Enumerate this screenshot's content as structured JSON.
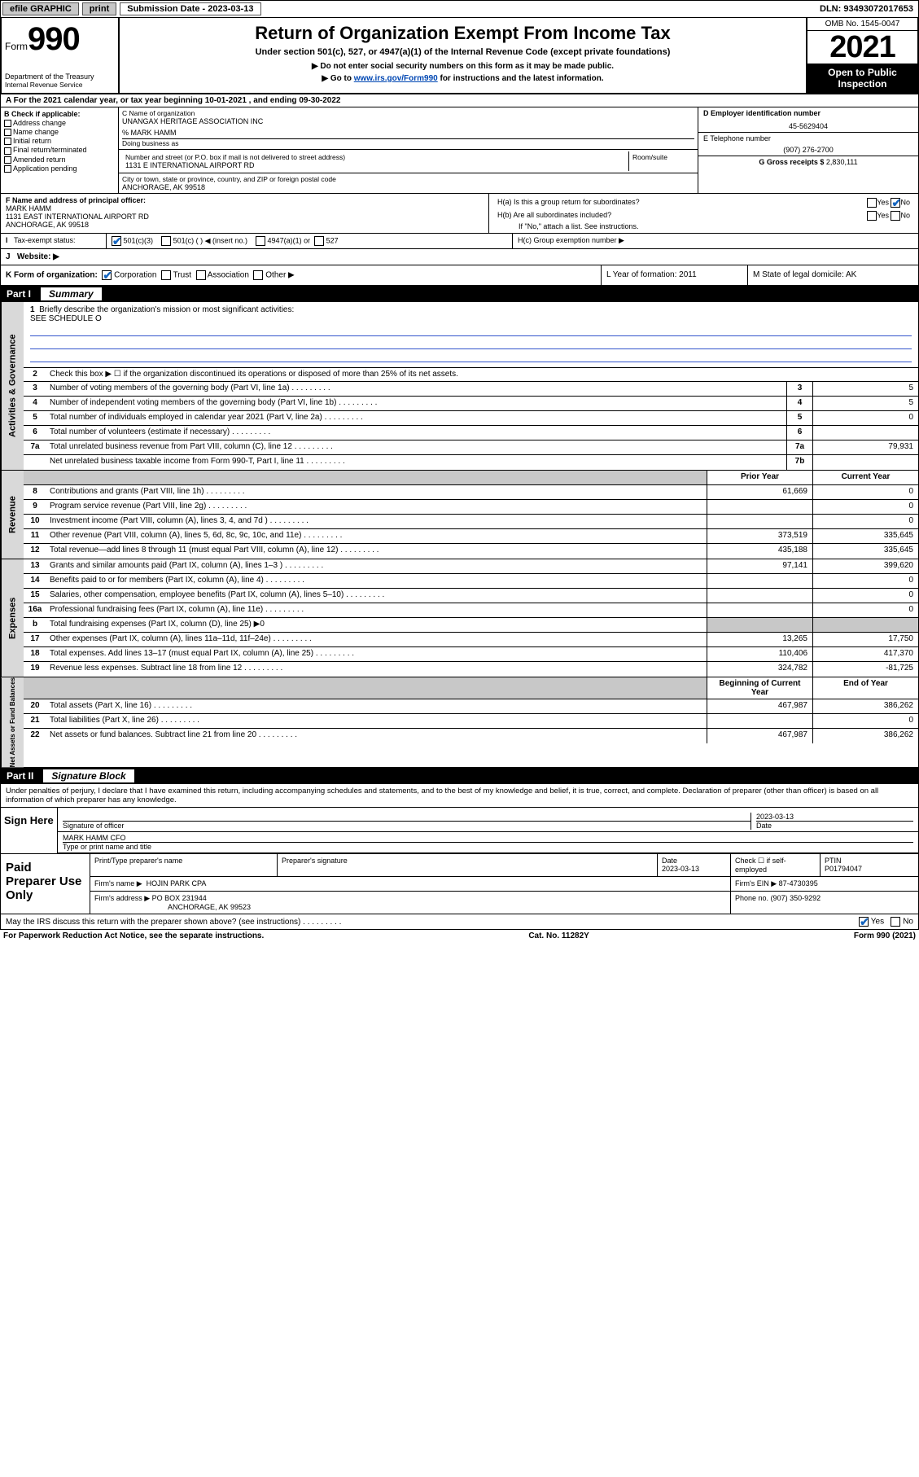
{
  "topbar": {
    "efile": "efile GRAPHIC",
    "print": "print",
    "sub_label": "Submission Date - 2023-03-13",
    "dln": "DLN: 93493072017653"
  },
  "header": {
    "form_word": "Form",
    "form_num": "990",
    "dept": "Department of the Treasury",
    "irs": "Internal Revenue Service",
    "title": "Return of Organization Exempt From Income Tax",
    "sub": "Under section 501(c), 527, or 4947(a)(1) of the Internal Revenue Code (except private foundations)",
    "note1": "▶ Do not enter social security numbers on this form as it may be made public.",
    "note2_pre": "▶ Go to ",
    "note2_link": "www.irs.gov/Form990",
    "note2_post": " for instructions and the latest information.",
    "omb": "OMB No. 1545-0047",
    "year": "2021",
    "inspect": "Open to Public Inspection"
  },
  "taxyear": "A For the 2021 calendar year, or tax year beginning 10-01-2021  , and ending 09-30-2022",
  "boxB": {
    "title": "B Check if applicable:",
    "items": [
      "Address change",
      "Name change",
      "Initial return",
      "Final return/terminated",
      "Amended return",
      "Application pending"
    ]
  },
  "boxC": {
    "label_name": "C Name of organization",
    "org": "UNANGAX HERITAGE ASSOCIATION INC",
    "care": "% MARK HAMM",
    "dba_label": "Doing business as",
    "addr_label": "Number and street (or P.O. box if mail is not delivered to street address)",
    "room_label": "Room/suite",
    "addr": "1131 E INTERNATIONAL AIRPORT RD",
    "city_label": "City or town, state or province, country, and ZIP or foreign postal code",
    "city": "ANCHORAGE, AK  99518"
  },
  "boxD": {
    "ein_label": "D Employer identification number",
    "ein": "45-5629404",
    "tel_label": "E Telephone number",
    "tel": "(907) 276-2700",
    "gross_label": "G Gross receipts $",
    "gross": "2,830,111"
  },
  "boxF": {
    "label": "F  Name and address of principal officer:",
    "name": "MARK HAMM",
    "addr1": "1131 EAST INTERNATIONAL AIRPORT RD",
    "addr2": "ANCHORAGE, AK  99518"
  },
  "boxH": {
    "a": "H(a)  Is this a group return for subordinates?",
    "b": "H(b)  Are all subordinates included?",
    "note": "If \"No,\" attach a list. See instructions.",
    "c": "H(c)  Group exemption number ▶",
    "yes": "Yes",
    "no": "No"
  },
  "taxexempt": {
    "label": "Tax-exempt status:",
    "opt1": "501(c)(3)",
    "opt2": "501(c) (  ) ◀ (insert no.)",
    "opt3": "4947(a)(1) or",
    "opt4": "527"
  },
  "website": {
    "label": "Website: ▶"
  },
  "boxK": {
    "label": "K Form of organization:",
    "opts": [
      "Corporation",
      "Trust",
      "Association",
      "Other ▶"
    ],
    "L": "L Year of formation: 2011",
    "M": "M State of legal domicile: AK"
  },
  "part1": {
    "hdr": "Part I",
    "title": "Summary",
    "line1": "Briefly describe the organization's mission or most significant activities:",
    "line1v": "SEE SCHEDULE O",
    "line2": "Check this box ▶ ☐  if the organization discontinued its operations or disposed of more than 25% of its net assets.",
    "col_prior": "Prior Year",
    "col_curr": "Current Year",
    "col_boy": "Beginning of Current Year",
    "col_eoy": "End of Year",
    "side1": "Activities & Governance",
    "side2": "Revenue",
    "side3": "Expenses",
    "side4": "Net Assets or Fund Balances",
    "rows_gov": [
      {
        "n": "3",
        "d": "Number of voting members of the governing body (Part VI, line 1a)",
        "b": "3",
        "v": "5"
      },
      {
        "n": "4",
        "d": "Number of independent voting members of the governing body (Part VI, line 1b)",
        "b": "4",
        "v": "5"
      },
      {
        "n": "5",
        "d": "Total number of individuals employed in calendar year 2021 (Part V, line 2a)",
        "b": "5",
        "v": "0"
      },
      {
        "n": "6",
        "d": "Total number of volunteers (estimate if necessary)",
        "b": "6",
        "v": ""
      },
      {
        "n": "7a",
        "d": "Total unrelated business revenue from Part VIII, column (C), line 12",
        "b": "7a",
        "v": "79,931"
      },
      {
        "n": "",
        "d": "Net unrelated business taxable income from Form 990-T, Part I, line 11",
        "b": "7b",
        "v": ""
      }
    ],
    "rows_rev": [
      {
        "n": "8",
        "d": "Contributions and grants (Part VIII, line 1h)",
        "p": "61,669",
        "c": "0"
      },
      {
        "n": "9",
        "d": "Program service revenue (Part VIII, line 2g)",
        "p": "",
        "c": "0"
      },
      {
        "n": "10",
        "d": "Investment income (Part VIII, column (A), lines 3, 4, and 7d )",
        "p": "",
        "c": "0"
      },
      {
        "n": "11",
        "d": "Other revenue (Part VIII, column (A), lines 5, 6d, 8c, 9c, 10c, and 11e)",
        "p": "373,519",
        "c": "335,645"
      },
      {
        "n": "12",
        "d": "Total revenue—add lines 8 through 11 (must equal Part VIII, column (A), line 12)",
        "p": "435,188",
        "c": "335,645"
      }
    ],
    "rows_exp": [
      {
        "n": "13",
        "d": "Grants and similar amounts paid (Part IX, column (A), lines 1–3 )",
        "p": "97,141",
        "c": "399,620"
      },
      {
        "n": "14",
        "d": "Benefits paid to or for members (Part IX, column (A), line 4)",
        "p": "",
        "c": "0"
      },
      {
        "n": "15",
        "d": "Salaries, other compensation, employee benefits (Part IX, column (A), lines 5–10)",
        "p": "",
        "c": "0"
      },
      {
        "n": "16a",
        "d": "Professional fundraising fees (Part IX, column (A), line 11e)",
        "p": "",
        "c": "0"
      },
      {
        "n": "b",
        "d": "Total fundraising expenses (Part IX, column (D), line 25) ▶0",
        "p": "",
        "c": "",
        "shade": true
      },
      {
        "n": "17",
        "d": "Other expenses (Part IX, column (A), lines 11a–11d, 11f–24e)",
        "p": "13,265",
        "c": "17,750"
      },
      {
        "n": "18",
        "d": "Total expenses. Add lines 13–17 (must equal Part IX, column (A), line 25)",
        "p": "110,406",
        "c": "417,370"
      },
      {
        "n": "19",
        "d": "Revenue less expenses. Subtract line 18 from line 12",
        "p": "324,782",
        "c": "-81,725"
      }
    ],
    "rows_net": [
      {
        "n": "20",
        "d": "Total assets (Part X, line 16)",
        "p": "467,987",
        "c": "386,262"
      },
      {
        "n": "21",
        "d": "Total liabilities (Part X, line 26)",
        "p": "",
        "c": "0"
      },
      {
        "n": "22",
        "d": "Net assets or fund balances. Subtract line 21 from line 20",
        "p": "467,987",
        "c": "386,262"
      }
    ]
  },
  "part2": {
    "hdr": "Part II",
    "title": "Signature Block",
    "note": "Under penalties of perjury, I declare that I have examined this return, including accompanying schedules and statements, and to the best of my knowledge and belief, it is true, correct, and complete. Declaration of preparer (other than officer) is based on all information of which preparer has any knowledge.",
    "sign_here": "Sign Here",
    "sig_officer": "Signature of officer",
    "date": "Date",
    "date_v": "2023-03-13",
    "name_title": "MARK HAMM CFO",
    "name_label": "Type or print name and title",
    "paid": "Paid Preparer Use Only",
    "prep_name_l": "Print/Type preparer's name",
    "prep_sig_l": "Preparer's signature",
    "prep_date_l": "Date",
    "prep_date_v": "2023-03-13",
    "check_l": "Check ☐ if self-employed",
    "ptin_l": "PTIN",
    "ptin_v": "P01794047",
    "firm_name_l": "Firm's name    ▶",
    "firm_name_v": "HOJIN PARK CPA",
    "firm_ein_l": "Firm's EIN ▶",
    "firm_ein_v": "87-4730395",
    "firm_addr_l": "Firm's address ▶",
    "firm_addr_v": "PO BOX 231944",
    "firm_addr_v2": "ANCHORAGE, AK  99523",
    "phone_l": "Phone no.",
    "phone_v": "(907) 350-9292",
    "discuss": "May the IRS discuss this return with the preparer shown above? (see instructions)",
    "discuss_yes": "Yes",
    "discuss_no": "No"
  },
  "footer": {
    "l": "For Paperwork Reduction Act Notice, see the separate instructions.",
    "c": "Cat. No. 11282Y",
    "r": "Form 990 (2021)"
  }
}
